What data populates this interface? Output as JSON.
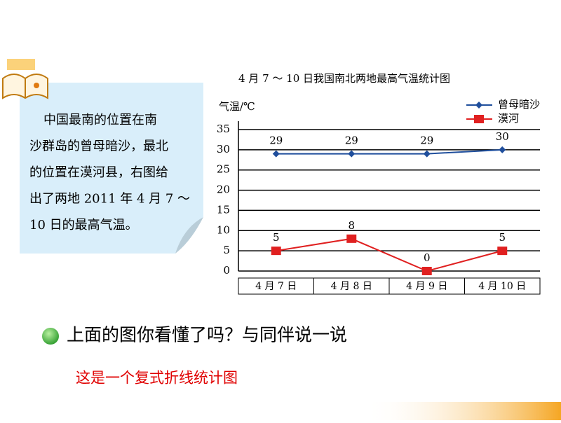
{
  "chart_data": {
    "type": "line",
    "title": "4 月 7 ～ 10 日我国南北两地最高气温统计图",
    "y_label": "气温/℃",
    "categories": [
      "4 月 7 日",
      "4 月 8 日",
      "4 月 9 日",
      "4 月 10 日"
    ],
    "series": [
      {
        "name": "曾母暗沙",
        "color": "#1f4e9c",
        "marker": "diamond",
        "values": [
          29,
          29,
          29,
          30
        ]
      },
      {
        "name": "漠河",
        "color": "#e02020",
        "marker": "square",
        "values": [
          5,
          8,
          0,
          5
        ]
      }
    ],
    "ylim": [
      0,
      35
    ],
    "yticks": [
      0,
      5,
      10,
      15,
      20,
      25,
      30,
      35
    ],
    "grid": true,
    "data_labels": true
  },
  "note": {
    "lines": [
      "中国最南的位置在南",
      "沙群岛的曾母暗沙，最北",
      "的位置在漠河县，右图给",
      "出了两地 2011 年 4 月 7 ～",
      "10 日的最高气温。"
    ]
  },
  "question": "上面的图你看懂了吗？与同伴说一说",
  "answer": "这是一个复式折线统计图"
}
